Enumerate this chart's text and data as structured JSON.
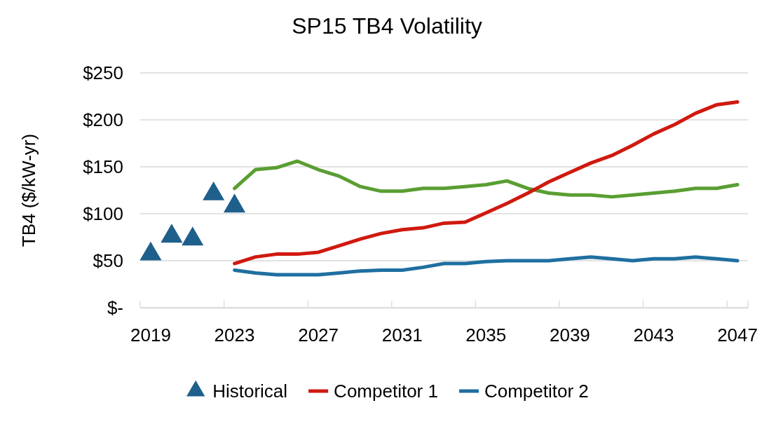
{
  "chart_data": {
    "type": "line",
    "title": "SP15 TB4 Volatility",
    "ylabel": "TB4 ($/kW-yr)",
    "categories": [
      "2019",
      null,
      null,
      null,
      "2023",
      null,
      null,
      null,
      "2027",
      null,
      null,
      null,
      "2031",
      null,
      null,
      null,
      "2035",
      null,
      null,
      null,
      "2039",
      null,
      null,
      null,
      "2043",
      null,
      null,
      null,
      "2047"
    ],
    "series": [
      {
        "name": "Historical",
        "type": "scatter",
        "marker": "triangle",
        "color": "#1f5f8b",
        "values": [
          57,
          76,
          73,
          121,
          108,
          null,
          null,
          null,
          null,
          null,
          null,
          null,
          null,
          null,
          null,
          null,
          null,
          null,
          null,
          null,
          null,
          null,
          null,
          null,
          null,
          null,
          null,
          null,
          null
        ]
      },
      {
        "color": "#5a9e32",
        "values": [
          null,
          null,
          null,
          null,
          127,
          147,
          149,
          156,
          147,
          140,
          129,
          124,
          124,
          127,
          127,
          129,
          131,
          135,
          127,
          122,
          120,
          120,
          118,
          120,
          122,
          124,
          127,
          127,
          131
        ]
      },
      {
        "name": "Competitor 1",
        "color": "#d0190f",
        "values": [
          null,
          null,
          null,
          null,
          47,
          54,
          57,
          57,
          59,
          66,
          73,
          79,
          83,
          85,
          90,
          91,
          101,
          111,
          122,
          134,
          144,
          154,
          162,
          173,
          185,
          195,
          207,
          216,
          219
        ]
      },
      {
        "name": "Competitor 2",
        "color": "#1f6fa0",
        "values": [
          null,
          null,
          null,
          null,
          40,
          37,
          35,
          35,
          35,
          37,
          39,
          40,
          40,
          43,
          47,
          47,
          49,
          50,
          50,
          50,
          52,
          54,
          52,
          50,
          52,
          52,
          54,
          52,
          50
        ]
      }
    ],
    "ylim": [
      0,
      250
    ],
    "yticks": [
      {
        "value": 0,
        "label": "$-"
      },
      {
        "value": 50,
        "label": "$50"
      },
      {
        "value": 100,
        "label": "$100"
      },
      {
        "value": 150,
        "label": "$150"
      },
      {
        "value": 200,
        "label": "$200"
      },
      {
        "value": 250,
        "label": "$250"
      }
    ],
    "grid": "y",
    "legend": "bottom",
    "line_style": "solid"
  }
}
